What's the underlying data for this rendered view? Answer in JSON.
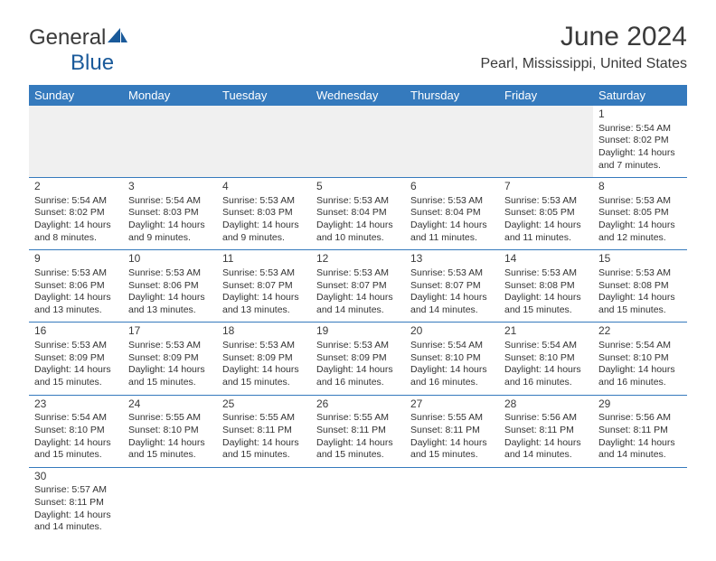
{
  "logo": {
    "text1": "General",
    "text2": "Blue"
  },
  "title": "June 2024",
  "location": "Pearl, Mississippi, United States",
  "weekdays": [
    "Sunday",
    "Monday",
    "Tuesday",
    "Wednesday",
    "Thursday",
    "Friday",
    "Saturday"
  ],
  "colors": {
    "header_bg": "#357abd",
    "header_fg": "#ffffff",
    "divider": "#357abd",
    "text": "#333333",
    "logo_blue": "#1a5a9a"
  },
  "first_weekday_index": 6,
  "days": [
    {
      "n": 1,
      "sunrise": "5:54 AM",
      "sunset": "8:02 PM",
      "daylight": "14 hours and 7 minutes."
    },
    {
      "n": 2,
      "sunrise": "5:54 AM",
      "sunset": "8:02 PM",
      "daylight": "14 hours and 8 minutes."
    },
    {
      "n": 3,
      "sunrise": "5:54 AM",
      "sunset": "8:03 PM",
      "daylight": "14 hours and 9 minutes."
    },
    {
      "n": 4,
      "sunrise": "5:53 AM",
      "sunset": "8:03 PM",
      "daylight": "14 hours and 9 minutes."
    },
    {
      "n": 5,
      "sunrise": "5:53 AM",
      "sunset": "8:04 PM",
      "daylight": "14 hours and 10 minutes."
    },
    {
      "n": 6,
      "sunrise": "5:53 AM",
      "sunset": "8:04 PM",
      "daylight": "14 hours and 11 minutes."
    },
    {
      "n": 7,
      "sunrise": "5:53 AM",
      "sunset": "8:05 PM",
      "daylight": "14 hours and 11 minutes."
    },
    {
      "n": 8,
      "sunrise": "5:53 AM",
      "sunset": "8:05 PM",
      "daylight": "14 hours and 12 minutes."
    },
    {
      "n": 9,
      "sunrise": "5:53 AM",
      "sunset": "8:06 PM",
      "daylight": "14 hours and 13 minutes."
    },
    {
      "n": 10,
      "sunrise": "5:53 AM",
      "sunset": "8:06 PM",
      "daylight": "14 hours and 13 minutes."
    },
    {
      "n": 11,
      "sunrise": "5:53 AM",
      "sunset": "8:07 PM",
      "daylight": "14 hours and 13 minutes."
    },
    {
      "n": 12,
      "sunrise": "5:53 AM",
      "sunset": "8:07 PM",
      "daylight": "14 hours and 14 minutes."
    },
    {
      "n": 13,
      "sunrise": "5:53 AM",
      "sunset": "8:07 PM",
      "daylight": "14 hours and 14 minutes."
    },
    {
      "n": 14,
      "sunrise": "5:53 AM",
      "sunset": "8:08 PM",
      "daylight": "14 hours and 15 minutes."
    },
    {
      "n": 15,
      "sunrise": "5:53 AM",
      "sunset": "8:08 PM",
      "daylight": "14 hours and 15 minutes."
    },
    {
      "n": 16,
      "sunrise": "5:53 AM",
      "sunset": "8:09 PM",
      "daylight": "14 hours and 15 minutes."
    },
    {
      "n": 17,
      "sunrise": "5:53 AM",
      "sunset": "8:09 PM",
      "daylight": "14 hours and 15 minutes."
    },
    {
      "n": 18,
      "sunrise": "5:53 AM",
      "sunset": "8:09 PM",
      "daylight": "14 hours and 15 minutes."
    },
    {
      "n": 19,
      "sunrise": "5:53 AM",
      "sunset": "8:09 PM",
      "daylight": "14 hours and 16 minutes."
    },
    {
      "n": 20,
      "sunrise": "5:54 AM",
      "sunset": "8:10 PM",
      "daylight": "14 hours and 16 minutes."
    },
    {
      "n": 21,
      "sunrise": "5:54 AM",
      "sunset": "8:10 PM",
      "daylight": "14 hours and 16 minutes."
    },
    {
      "n": 22,
      "sunrise": "5:54 AM",
      "sunset": "8:10 PM",
      "daylight": "14 hours and 16 minutes."
    },
    {
      "n": 23,
      "sunrise": "5:54 AM",
      "sunset": "8:10 PM",
      "daylight": "14 hours and 15 minutes."
    },
    {
      "n": 24,
      "sunrise": "5:55 AM",
      "sunset": "8:10 PM",
      "daylight": "14 hours and 15 minutes."
    },
    {
      "n": 25,
      "sunrise": "5:55 AM",
      "sunset": "8:11 PM",
      "daylight": "14 hours and 15 minutes."
    },
    {
      "n": 26,
      "sunrise": "5:55 AM",
      "sunset": "8:11 PM",
      "daylight": "14 hours and 15 minutes."
    },
    {
      "n": 27,
      "sunrise": "5:55 AM",
      "sunset": "8:11 PM",
      "daylight": "14 hours and 15 minutes."
    },
    {
      "n": 28,
      "sunrise": "5:56 AM",
      "sunset": "8:11 PM",
      "daylight": "14 hours and 14 minutes."
    },
    {
      "n": 29,
      "sunrise": "5:56 AM",
      "sunset": "8:11 PM",
      "daylight": "14 hours and 14 minutes."
    },
    {
      "n": 30,
      "sunrise": "5:57 AM",
      "sunset": "8:11 PM",
      "daylight": "14 hours and 14 minutes."
    }
  ],
  "labels": {
    "sunrise_prefix": "Sunrise: ",
    "sunset_prefix": "Sunset: ",
    "daylight_prefix": "Daylight: "
  }
}
